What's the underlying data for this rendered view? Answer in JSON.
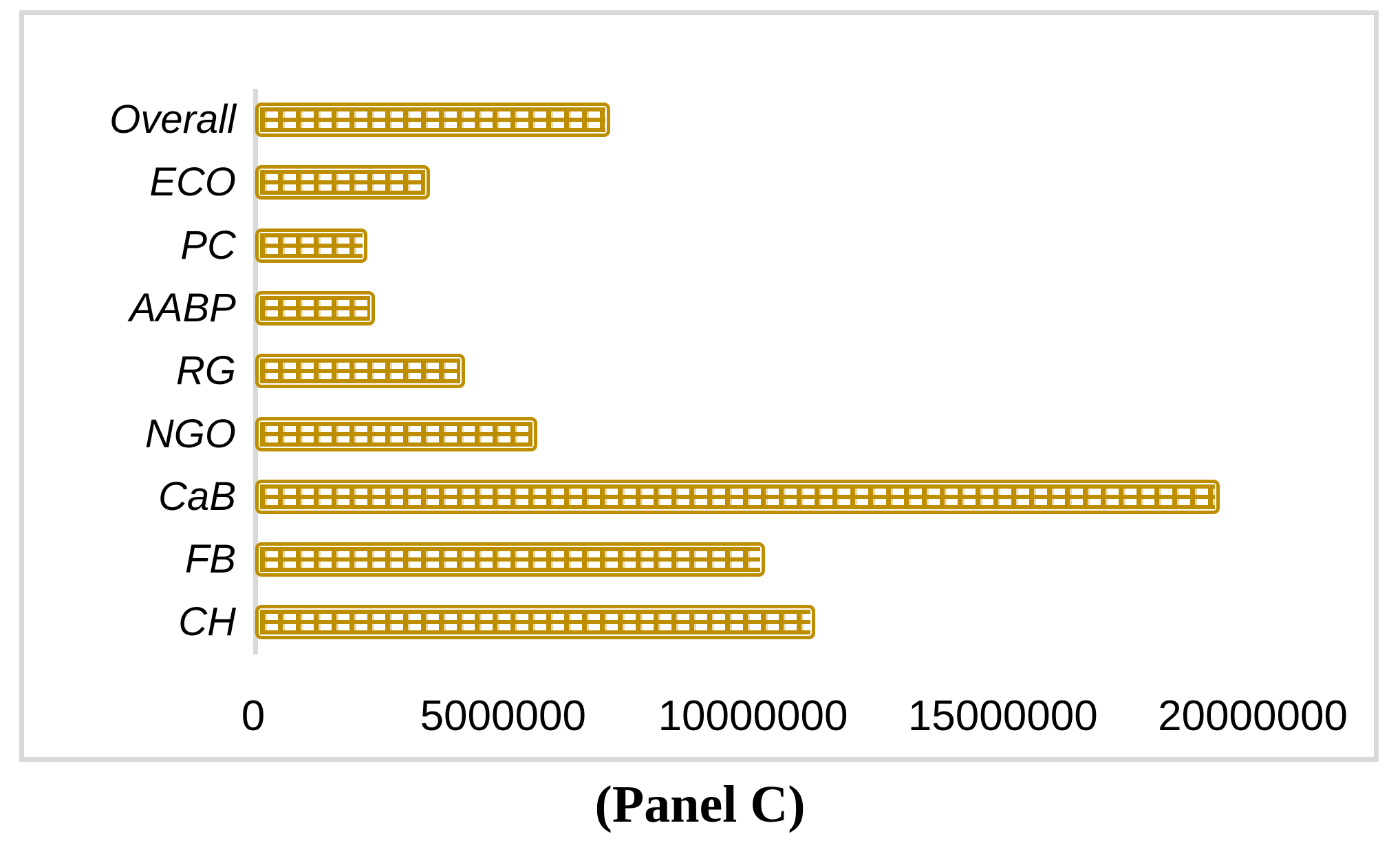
{
  "chart_data": {
    "type": "bar",
    "orientation": "horizontal",
    "title": "(Panel C)",
    "categories": [
      "Overall",
      "ECO",
      "PC",
      "AABP",
      "RG",
      "NGO",
      "CaB",
      "FB",
      "CH"
    ],
    "values": [
      7100000,
      3500000,
      2250000,
      2400000,
      4200000,
      5650000,
      19300000,
      10200000,
      11200000
    ],
    "xlabel": "",
    "ylabel": "",
    "x_ticks": [
      0,
      5000000,
      10000000,
      15000000,
      20000000
    ],
    "x_tick_labels": [
      "0",
      "5000000",
      "10000000",
      "15000000",
      "20000000"
    ],
    "xlim": [
      0,
      22900000
    ],
    "grid": false,
    "legend": false,
    "bar_style": {
      "fill_pattern": "grid",
      "color": "#bd8e00",
      "pattern_shadow": "#ebd9a6",
      "outline": true
    },
    "axis_color": "#d9d9d9",
    "frame_color": "#d9d9d9",
    "text_color": "#000000"
  }
}
